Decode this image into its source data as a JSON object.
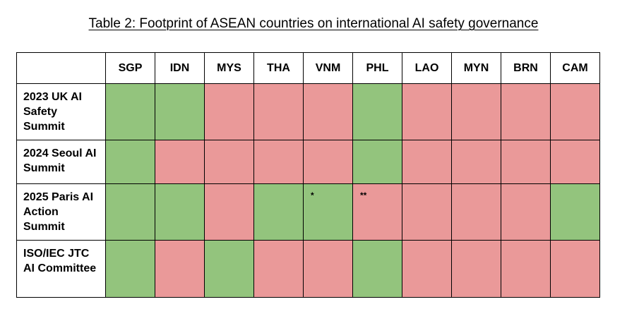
{
  "caption": "Table 2: Footprint of ASEAN countries on international AI safety governance",
  "colors": {
    "yes": "#93c47d",
    "no": "#ea9999"
  },
  "columns": [
    "SGP",
    "IDN",
    "MYS",
    "THA",
    "VNM",
    "PHL",
    "LAO",
    "MYN",
    "BRN",
    "CAM"
  ],
  "rows": [
    {
      "label": "2023 UK AI Safety Summit",
      "values": [
        "yes",
        "yes",
        "no",
        "no",
        "no",
        "yes",
        "no",
        "no",
        "no",
        "no"
      ],
      "marks": [
        "",
        "",
        "",
        "",
        "",
        "",
        "",
        "",
        "",
        ""
      ]
    },
    {
      "label": "2024 Seoul AI Summit",
      "values": [
        "yes",
        "no",
        "no",
        "no",
        "no",
        "yes",
        "no",
        "no",
        "no",
        "no"
      ],
      "marks": [
        "",
        "",
        "",
        "",
        "",
        "",
        "",
        "",
        "",
        ""
      ]
    },
    {
      "label": "2025 Paris AI Action Summit",
      "values": [
        "yes",
        "yes",
        "no",
        "yes",
        "yes",
        "no",
        "no",
        "no",
        "no",
        "yes"
      ],
      "marks": [
        "",
        "",
        "",
        "",
        "*",
        "**",
        "",
        "",
        "",
        ""
      ]
    },
    {
      "label": "ISO/IEC JTC AI Committee",
      "values": [
        "yes",
        "no",
        "yes",
        "no",
        "no",
        "yes",
        "no",
        "no",
        "no",
        "no"
      ],
      "marks": [
        "",
        "",
        "",
        "",
        "",
        "",
        "",
        "",
        "",
        ""
      ]
    }
  ]
}
